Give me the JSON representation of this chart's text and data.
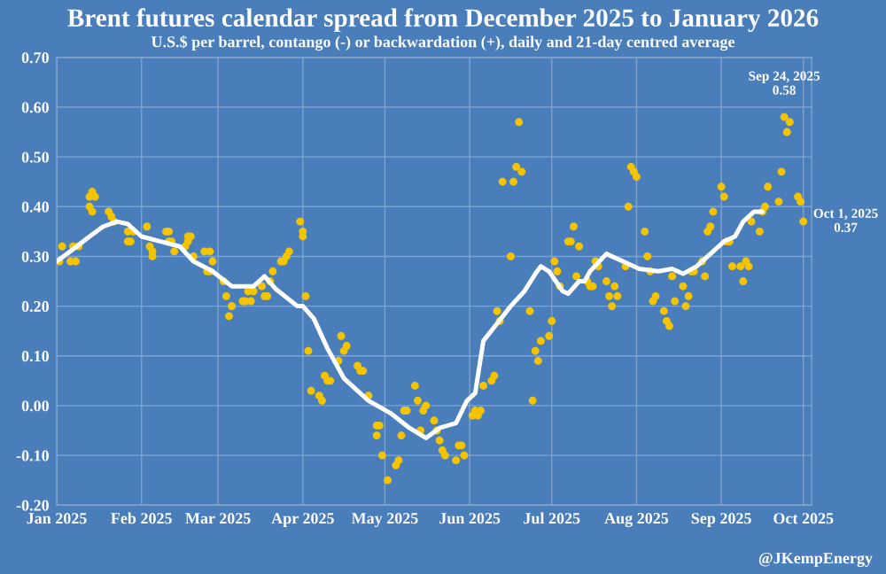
{
  "chart_data": {
    "type": "scatter",
    "title": "Brent futures calendar spread from December 2025 to January 2026",
    "subtitle": "U.S.$ per barrel, contango (-) or backwardation (+), daily and 21-day centred average",
    "series": [
      {
        "color": "#f5c400",
        "marker": "circle",
        "x": [
          "2025-01-02",
          "2025-01-03",
          "2025-01-06",
          "2025-01-07",
          "2025-01-08",
          "2025-01-09",
          "2025-01-13",
          "2025-01-13",
          "2025-01-14",
          "2025-01-14",
          "2025-01-15",
          "2025-01-20",
          "2025-01-21",
          "2025-01-22",
          "2025-01-27",
          "2025-01-27",
          "2025-01-28",
          "2025-01-29",
          "2025-02-03",
          "2025-02-04",
          "2025-02-05",
          "2025-02-05",
          "2025-02-10",
          "2025-02-11",
          "2025-02-11",
          "2025-02-12",
          "2025-02-13",
          "2025-02-17",
          "2025-02-18",
          "2025-02-18",
          "2025-02-19",
          "2025-02-20",
          "2025-02-24",
          "2025-02-25",
          "2025-02-26",
          "2025-02-26",
          "2025-02-27",
          "2025-03-03",
          "2025-03-04",
          "2025-03-05",
          "2025-03-06",
          "2025-03-06",
          "2025-03-10",
          "2025-03-11",
          "2025-03-12",
          "2025-03-13",
          "2025-03-14",
          "2025-03-17",
          "2025-03-18",
          "2025-03-19",
          "2025-03-20",
          "2025-03-21",
          "2025-03-24",
          "2025-03-25",
          "2025-03-26",
          "2025-03-27",
          "2025-03-31",
          "2025-04-01",
          "2025-04-01",
          "2025-04-02",
          "2025-04-03",
          "2025-04-04",
          "2025-04-07",
          "2025-04-08",
          "2025-04-09",
          "2025-04-10",
          "2025-04-11",
          "2025-04-14",
          "2025-04-15",
          "2025-04-16",
          "2025-04-17",
          "2025-04-21",
          "2025-04-22",
          "2025-04-23",
          "2025-04-25",
          "2025-04-28",
          "2025-04-28",
          "2025-04-29",
          "2025-04-30",
          "2025-05-02",
          "2025-05-05",
          "2025-05-06",
          "2025-05-07",
          "2025-05-08",
          "2025-05-09",
          "2025-05-12",
          "2025-05-13",
          "2025-05-14",
          "2025-05-15",
          "2025-05-16",
          "2025-05-19",
          "2025-05-20",
          "2025-05-21",
          "2025-05-22",
          "2025-05-23",
          "2025-05-27",
          "2025-05-28",
          "2025-05-29",
          "2025-05-30",
          "2025-06-02",
          "2025-06-03",
          "2025-06-04",
          "2025-06-05",
          "2025-06-06",
          "2025-06-09",
          "2025-06-10",
          "2025-06-11",
          "2025-06-12",
          "2025-06-13",
          "2025-06-16",
          "2025-06-17",
          "2025-06-18",
          "2025-06-19",
          "2025-06-20",
          "2025-06-23",
          "2025-06-24",
          "2025-06-25",
          "2025-06-26",
          "2025-06-27",
          "2025-06-30",
          "2025-07-01",
          "2025-07-02",
          "2025-07-03",
          "2025-07-04",
          "2025-07-07",
          "2025-07-08",
          "2025-07-09",
          "2025-07-10",
          "2025-07-11",
          "2025-07-14",
          "2025-07-15",
          "2025-07-16",
          "2025-07-17",
          "2025-07-18",
          "2025-07-21",
          "2025-07-22",
          "2025-07-23",
          "2025-07-24",
          "2025-07-25",
          "2025-07-28",
          "2025-07-29",
          "2025-07-30",
          "2025-07-31",
          "2025-08-01",
          "2025-08-04",
          "2025-08-05",
          "2025-08-06",
          "2025-08-07",
          "2025-08-08",
          "2025-08-11",
          "2025-08-12",
          "2025-08-13",
          "2025-08-14",
          "2025-08-15",
          "2025-08-18",
          "2025-08-19",
          "2025-08-20",
          "2025-08-21",
          "2025-08-22",
          "2025-08-25",
          "2025-08-26",
          "2025-08-27",
          "2025-08-28",
          "2025-08-29",
          "2025-09-01",
          "2025-09-02",
          "2025-09-03",
          "2025-09-04",
          "2025-09-05",
          "2025-09-08",
          "2025-09-09",
          "2025-09-10",
          "2025-09-11",
          "2025-09-12",
          "2025-09-15",
          "2025-09-16",
          "2025-09-17",
          "2025-09-18",
          "2025-09-22",
          "2025-09-23",
          "2025-09-24",
          "2025-09-25",
          "2025-09-26",
          "2025-09-29",
          "2025-09-30",
          "2025-10-01"
        ],
        "values": [
          0.29,
          0.32,
          0.29,
          0.32,
          0.29,
          0.32,
          0.4,
          0.42,
          0.39,
          0.43,
          0.42,
          0.39,
          0.38,
          0.37,
          0.33,
          0.35,
          0.33,
          0.35,
          0.36,
          0.32,
          0.3,
          0.31,
          0.35,
          0.35,
          0.33,
          0.33,
          0.31,
          0.32,
          0.33,
          0.34,
          0.34,
          0.3,
          0.31,
          0.27,
          0.27,
          0.31,
          0.29,
          0.25,
          0.22,
          0.18,
          0.2,
          0.2,
          0.21,
          0.21,
          0.23,
          0.21,
          0.23,
          0.24,
          0.22,
          0.22,
          0.25,
          0.27,
          0.29,
          0.29,
          0.3,
          0.31,
          0.37,
          0.34,
          0.35,
          0.22,
          0.11,
          0.03,
          0.02,
          0.01,
          0.06,
          0.05,
          0.05,
          0.09,
          0.14,
          0.11,
          0.12,
          0.08,
          0.07,
          0.07,
          0.02,
          -0.04,
          -0.06,
          -0.04,
          -0.1,
          -0.15,
          -0.12,
          -0.11,
          -0.06,
          -0.01,
          -0.01,
          0.04,
          0.01,
          -0.05,
          -0.01,
          0.0,
          -0.03,
          -0.05,
          -0.07,
          -0.09,
          -0.1,
          -0.11,
          -0.08,
          -0.08,
          -0.1,
          -0.02,
          -0.01,
          -0.02,
          -0.01,
          0.04,
          0.05,
          0.06,
          0.19,
          0.17,
          0.45,
          0.3,
          0.45,
          0.48,
          0.57,
          0.47,
          0.19,
          0.01,
          0.11,
          0.09,
          0.13,
          0.14,
          0.17,
          0.29,
          0.27,
          0.24,
          0.33,
          0.33,
          0.36,
          0.26,
          0.32,
          0.25,
          0.24,
          0.24,
          0.29,
          0.28,
          0.25,
          0.22,
          0.2,
          0.24,
          0.22,
          0.28,
          0.4,
          0.48,
          0.47,
          0.46,
          0.35,
          0.3,
          0.27,
          0.21,
          0.22,
          0.19,
          0.17,
          0.16,
          0.26,
          0.21,
          0.24,
          0.2,
          0.22,
          0.27,
          0.27,
          0.29,
          0.26,
          0.35,
          0.36,
          0.39,
          0.44,
          0.42,
          0.33,
          0.33,
          0.28,
          0.28,
          0.25,
          0.29,
          0.28,
          0.37,
          0.35,
          0.39,
          0.4,
          0.44,
          0.41,
          0.47,
          0.58,
          0.55,
          0.57,
          0.42,
          0.41,
          0.37
        ]
      },
      {
        "type": "line",
        "color": "#ffffff",
        "x": [
          "2025-01-01",
          "2025-01-06",
          "2025-01-13",
          "2025-01-18",
          "2025-01-23",
          "2025-01-27",
          "2025-02-01",
          "2025-02-08",
          "2025-02-15",
          "2025-02-20",
          "2025-02-27",
          "2025-03-06",
          "2025-03-14",
          "2025-03-18",
          "2025-03-22",
          "2025-03-30",
          "2025-04-01",
          "2025-04-05",
          "2025-04-10",
          "2025-04-16",
          "2025-04-25",
          "2025-05-03",
          "2025-05-10",
          "2025-05-16",
          "2025-05-21",
          "2025-05-27",
          "2025-05-31",
          "2025-06-03",
          "2025-06-06",
          "2025-06-11",
          "2025-06-16",
          "2025-06-21",
          "2025-06-25",
          "2025-06-27",
          "2025-06-30",
          "2025-07-05",
          "2025-07-07",
          "2025-07-11",
          "2025-07-13",
          "2025-07-15",
          "2025-07-21",
          "2025-07-27",
          "2025-08-02",
          "2025-08-09",
          "2025-08-14",
          "2025-08-18",
          "2025-08-23",
          "2025-08-28",
          "2025-09-02",
          "2025-09-06",
          "2025-09-09",
          "2025-09-13",
          "2025-09-16"
        ],
        "values": [
          0.29,
          0.31,
          0.34,
          0.36,
          0.37,
          0.365,
          0.34,
          0.33,
          0.32,
          0.29,
          0.27,
          0.24,
          0.24,
          0.26,
          0.235,
          0.2,
          0.2,
          0.175,
          0.115,
          0.055,
          0.01,
          -0.015,
          -0.045,
          -0.065,
          -0.045,
          -0.035,
          0.01,
          0.025,
          0.13,
          0.165,
          0.2,
          0.23,
          0.265,
          0.28,
          0.27,
          0.23,
          0.225,
          0.25,
          0.25,
          0.27,
          0.305,
          0.29,
          0.275,
          0.27,
          0.275,
          0.265,
          0.28,
          0.305,
          0.33,
          0.34,
          0.37,
          0.39,
          0.39
        ]
      }
    ],
    "xlim": [
      "2025-01-01",
      "2025-10-04"
    ],
    "xticks": [
      {
        "value": "2025-01-01",
        "label": "Jan 2025"
      },
      {
        "value": "2025-02-01",
        "label": "Feb 2025"
      },
      {
        "value": "2025-03-01",
        "label": "Mar 2025"
      },
      {
        "value": "2025-04-01",
        "label": "Apr 2025"
      },
      {
        "value": "2025-05-01",
        "label": "May 2025"
      },
      {
        "value": "2025-06-01",
        "label": "Jun 2025"
      },
      {
        "value": "2025-07-01",
        "label": "Jul 2025"
      },
      {
        "value": "2025-08-01",
        "label": "Aug 2025"
      },
      {
        "value": "2025-09-01",
        "label": "Sep 2025"
      },
      {
        "value": "2025-10-01",
        "label": "Oct 2025"
      }
    ],
    "ylim": [
      -0.2,
      0.7
    ],
    "yticks": [
      {
        "value": -0.2,
        "label": "-0.20"
      },
      {
        "value": -0.1,
        "label": "-0.10"
      },
      {
        "value": 0,
        "label": "0.00"
      },
      {
        "value": 0.1,
        "label": "0.10"
      },
      {
        "value": 0.2,
        "label": "0.20"
      },
      {
        "value": 0.3,
        "label": "0.30"
      },
      {
        "value": 0.4,
        "label": "0.40"
      },
      {
        "value": 0.5,
        "label": "0.50"
      },
      {
        "value": 0.6,
        "label": "0.60"
      },
      {
        "value": 0.7,
        "label": "0.70"
      }
    ],
    "grid": true,
    "annotations": [
      {
        "text": "Sep 24, 2025\n0.58",
        "x": "2025-09-24",
        "y": 0.58
      },
      {
        "text": "Oct 1, 2025\n0.37",
        "x": "2025-10-01",
        "y": 0.37
      },
      "@JKempEnergy"
    ]
  }
}
